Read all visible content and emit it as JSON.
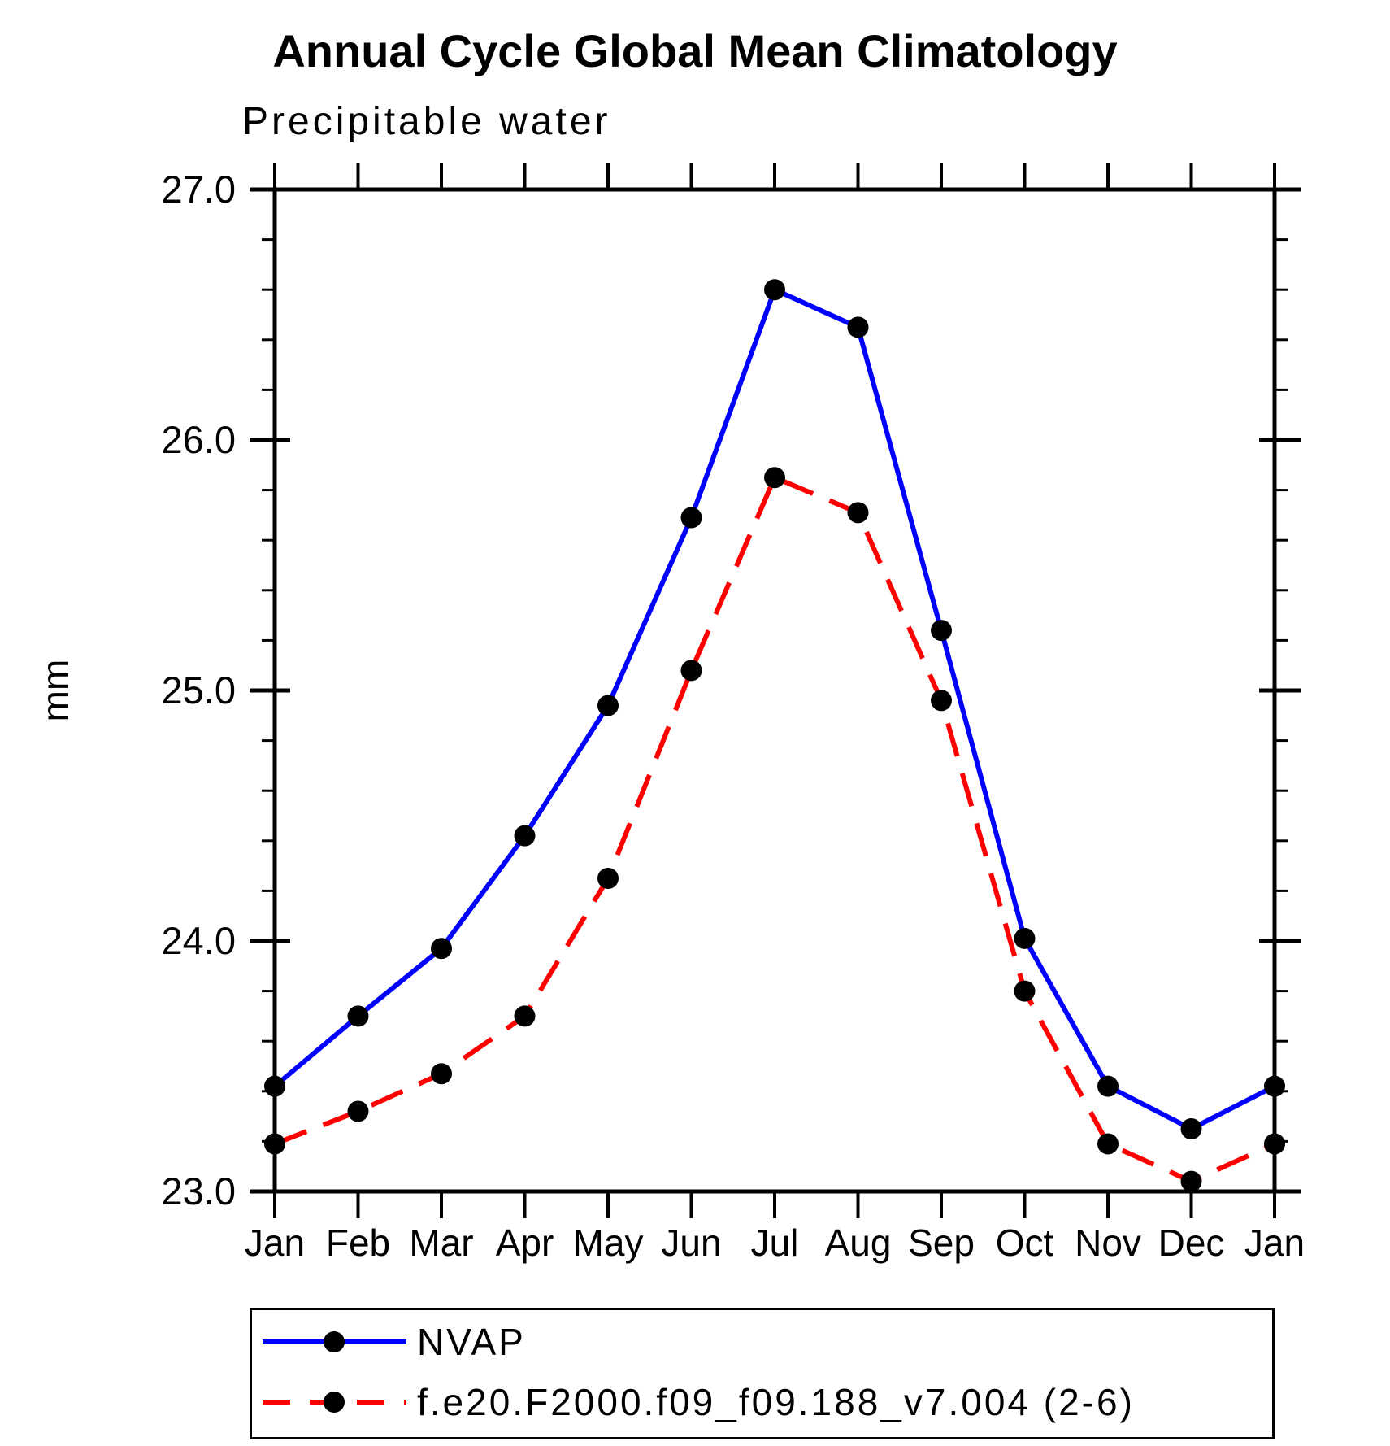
{
  "chart": {
    "title": "Annual Cycle Global Mean Climatology",
    "subtitle": "Precipitable water",
    "ylabel": "mm"
  },
  "chart_data": {
    "type": "line",
    "categories": [
      "Jan",
      "Feb",
      "Mar",
      "Apr",
      "May",
      "Jun",
      "Jul",
      "Aug",
      "Sep",
      "Oct",
      "Nov",
      "Dec",
      "Jan"
    ],
    "series": [
      {
        "name": "NVAP",
        "color": "#0000ff",
        "line_style": "solid",
        "marker": "filled-circle",
        "marker_color": "#000000",
        "values": [
          23.42,
          23.7,
          23.97,
          24.42,
          24.94,
          25.69,
          26.6,
          26.45,
          25.24,
          24.01,
          23.42,
          23.25,
          23.42
        ]
      },
      {
        "name": "f.e20.F2000.f09_f09.188_v7.004 (2-6)",
        "color": "#ff0000",
        "line_style": "dashed",
        "marker": "filled-circle",
        "marker_color": "#000000",
        "values": [
          23.19,
          23.32,
          23.47,
          23.7,
          24.25,
          25.08,
          25.85,
          25.71,
          24.96,
          23.8,
          23.19,
          23.04,
          23.19
        ]
      }
    ],
    "xlabel": "",
    "ylabel": "mm",
    "ylim": [
      23.0,
      27.0
    ],
    "ytick_major": 1.0,
    "ytick_minor": 0.2,
    "ytick_labels": [
      "23.0",
      "24.0",
      "25.0",
      "26.0",
      "27.0"
    ],
    "grid": false,
    "legend_position": "bottom",
    "axis_color": "#000000",
    "background_color": "#ffffff"
  }
}
